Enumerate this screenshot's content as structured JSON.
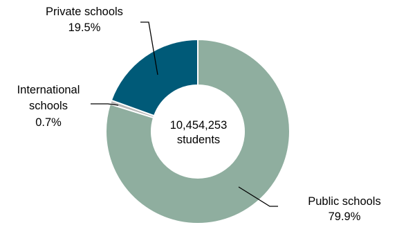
{
  "chart_data": {
    "type": "pie",
    "variant": "donut",
    "center_label": [
      "10,454,253",
      "students"
    ],
    "slices": [
      {
        "name": "Public schools",
        "label_lines": [
          "Public schools",
          "79.9%"
        ],
        "value": 79.9,
        "color": "#8fae9f"
      },
      {
        "name": "International schools",
        "label_lines": [
          "International",
          "schools",
          "0.7%"
        ],
        "value": 0.7,
        "color": "#b9b9b9"
      },
      {
        "name": "Private schools",
        "label_lines": [
          "Private schools",
          "19.5%"
        ],
        "value": 19.5,
        "color": "#005a78"
      }
    ],
    "leader_lines": true,
    "legend": "none"
  }
}
